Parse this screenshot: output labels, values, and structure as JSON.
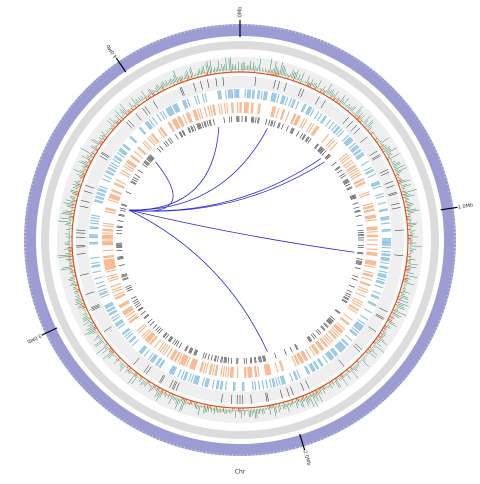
{
  "chart_data": {
    "type": "circos",
    "xlim": [
      0,
      4.42
    ],
    "xticks": [
      {
        "value": 0,
        "label": "0Mb"
      },
      {
        "value": 1,
        "label": "1.0Mb"
      },
      {
        "value": 2,
        "label": "2.0Mb"
      },
      {
        "value": 3,
        "label": "3.0Mb"
      },
      {
        "value": 4,
        "label": "4.0Mb"
      }
    ],
    "x_label": "Chr",
    "link_color": "#2a2ad8",
    "links": {
      "source": [
        3.5,
        3.5,
        3.5,
        3.5,
        3.5,
        3.5,
        3.5
      ],
      "target": [
        3.84,
        4.29,
        0.17,
        0.55,
        0.58,
        1.18,
        2.04
      ]
    }
  }
}
